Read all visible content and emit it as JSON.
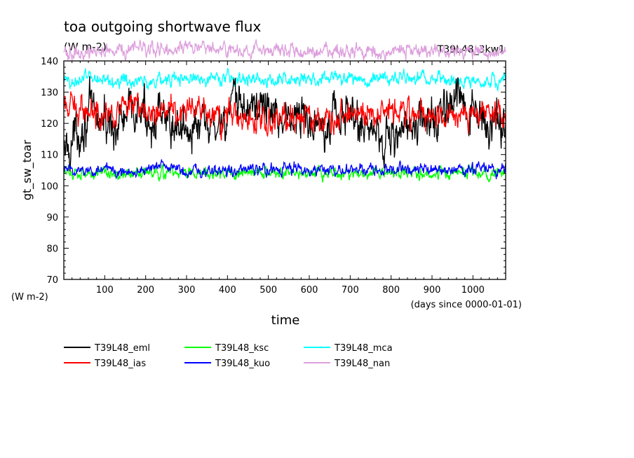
{
  "chart_data": {
    "type": "line",
    "title": "toa outgoing shortwave flux",
    "subtitle": "(W m-2)",
    "tag": "T39L48_3kw1",
    "ylabel": "gt_sw_toar",
    "yunit": "(W m-2)",
    "xlabel": "time",
    "xunit": "(days since 0000-01-01)",
    "xlim": [
      0,
      1080
    ],
    "ylim": [
      70,
      140
    ],
    "xticks": [
      100,
      200,
      300,
      400,
      500,
      600,
      700,
      800,
      900,
      1000
    ],
    "yticks": [
      70,
      80,
      90,
      100,
      110,
      120,
      130,
      140
    ],
    "grid": false,
    "legend_position": "bottom",
    "series": [
      {
        "name": "T39L48_eml",
        "color": "#000000",
        "mean": 121,
        "amp": 4.2,
        "x": [
          0,
          60,
          120,
          180,
          240,
          300,
          360,
          420,
          480,
          540,
          600,
          660,
          720,
          780,
          840,
          900,
          960,
          1020,
          1080
        ],
        "values": [
          110,
          123,
          119,
          124,
          120,
          119,
          118,
          125,
          126,
          122,
          121,
          123,
          121,
          116,
          118,
          121,
          127,
          120,
          121
        ]
      },
      {
        "name": "T39L48_ias",
        "color": "#ff0000",
        "mean": 123,
        "amp": 2.6,
        "x": [
          0,
          60,
          120,
          180,
          240,
          300,
          360,
          420,
          480,
          540,
          600,
          660,
          720,
          780,
          840,
          900,
          960,
          1020,
          1080
        ],
        "values": [
          124,
          125,
          124,
          124,
          125,
          124,
          122,
          122,
          121,
          122,
          122,
          121,
          123,
          125,
          124,
          123,
          122,
          123,
          124
        ]
      },
      {
        "name": "T39L48_ksc",
        "color": "#00ff00",
        "mean": 104,
        "amp": 1.1,
        "x": [
          0,
          60,
          120,
          180,
          240,
          300,
          360,
          420,
          480,
          540,
          600,
          660,
          720,
          780,
          840,
          900,
          960,
          1020,
          1080
        ],
        "values": [
          104,
          104,
          104,
          104,
          104,
          104,
          104,
          104,
          104,
          104,
          104,
          104,
          104,
          104,
          104,
          104,
          104,
          104,
          104
        ]
      },
      {
        "name": "T39L48_kuo",
        "color": "#0000ff",
        "mean": 105,
        "amp": 1.1,
        "x": [
          0,
          60,
          120,
          180,
          240,
          300,
          360,
          420,
          480,
          540,
          600,
          660,
          720,
          780,
          840,
          900,
          960,
          1020,
          1080
        ],
        "values": [
          105,
          105,
          105,
          105,
          106,
          105,
          105,
          105,
          105,
          105,
          105,
          105,
          105,
          105,
          105,
          105,
          105,
          105,
          105
        ]
      },
      {
        "name": "T39L48_mca",
        "color": "#00ffff",
        "mean": 134,
        "amp": 1.3,
        "x": [
          0,
          60,
          120,
          180,
          240,
          300,
          360,
          420,
          480,
          540,
          600,
          660,
          720,
          780,
          840,
          900,
          960,
          1020,
          1080
        ],
        "values": [
          133,
          135,
          134,
          133,
          134,
          134,
          135,
          134,
          134,
          134,
          134,
          135,
          134,
          135,
          134,
          134,
          134,
          133,
          134
        ]
      },
      {
        "name": "T39L48_nan",
        "color": "#dda0dd",
        "mean": 143,
        "amp": 1.3,
        "x": [
          0,
          60,
          120,
          180,
          240,
          300,
          360,
          420,
          480,
          540,
          600,
          660,
          720,
          780,
          840,
          900,
          960,
          1020,
          1080
        ],
        "values": [
          142,
          143,
          143,
          144,
          144,
          145,
          144,
          143,
          143,
          143,
          143,
          143,
          143,
          143,
          143,
          143,
          143,
          143,
          143
        ]
      }
    ]
  }
}
